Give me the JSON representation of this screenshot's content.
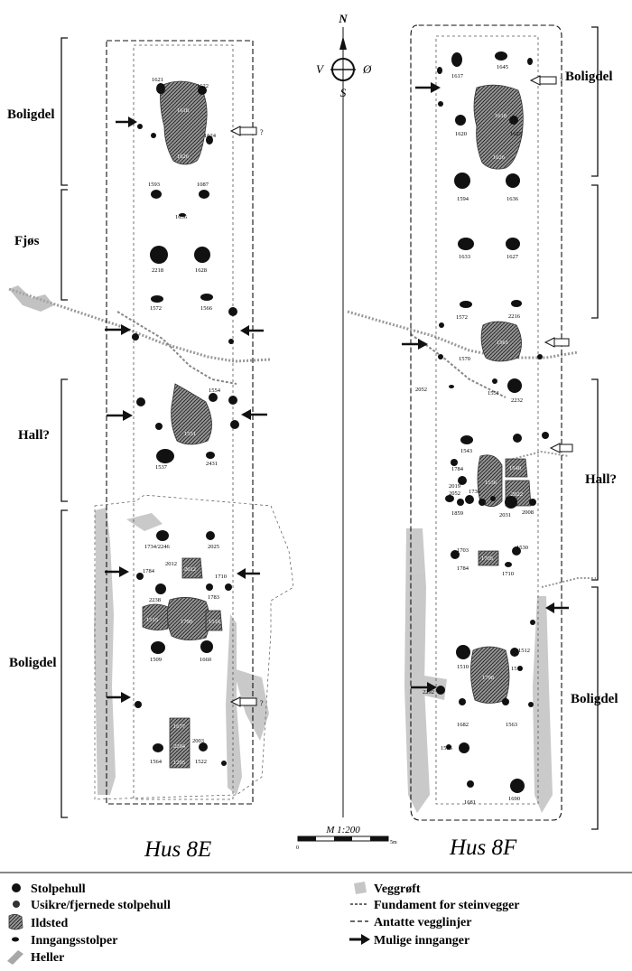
{
  "compass": {
    "north": "N",
    "south": "S",
    "west": "V",
    "east": "Ø"
  },
  "scale": {
    "label": "M 1:200",
    "start": "0",
    "end": "5m"
  },
  "houses": {
    "left": {
      "title": "Hus 8E",
      "zones": [
        "Boligdel",
        "Fjøs",
        "Hall?",
        "Boligdel"
      ]
    },
    "right": {
      "title": "Hus 8F",
      "zones": [
        "Boligdel",
        "Hall?",
        "Boligdel"
      ]
    }
  },
  "legend": {
    "left": [
      "Stolpehull",
      "Usikre/fjernede stolpehull",
      "Ildsted",
      "Inngangsstolper",
      "Heller"
    ],
    "right": [
      "Veggrøft",
      "Fundament for steinvegger",
      "Antatte vegglinjer",
      "Mulige innganger"
    ]
  },
  "features": {
    "left": {
      "posts": [
        "1621",
        "1622",
        "1624",
        "1593",
        "1087",
        "1636",
        "2218",
        "1628",
        "1572",
        "1566",
        "1554",
        "2431",
        "1537",
        "1734/2246",
        "2025",
        "2012",
        "1784",
        "1710",
        "2238",
        "1783",
        "1509",
        "1660",
        "2003",
        "1564",
        "1522"
      ],
      "hearths": [
        "1618",
        "1626",
        "1551",
        "2012",
        "1515",
        "1790",
        "1516",
        "1677",
        "2204",
        "1295"
      ]
    },
    "right": {
      "posts": [
        "1617",
        "1645",
        "1620",
        "1623",
        "1594",
        "1636",
        "1633",
        "1627",
        "1572",
        "2216",
        "1570",
        "2052",
        "1551",
        "2232",
        "1543",
        "1784",
        "2019",
        "2052",
        "1736",
        "1859",
        "2031",
        "2008",
        "1703",
        "1784",
        "1530",
        "1710",
        "1510",
        "1512",
        "1511",
        "2292",
        "1682",
        "1563",
        "1505",
        "1681",
        "1690"
      ],
      "hearths": [
        "1618",
        "1626",
        "1561",
        "1540",
        "1536",
        "2022",
        "1705",
        "1798"
      ]
    }
  }
}
